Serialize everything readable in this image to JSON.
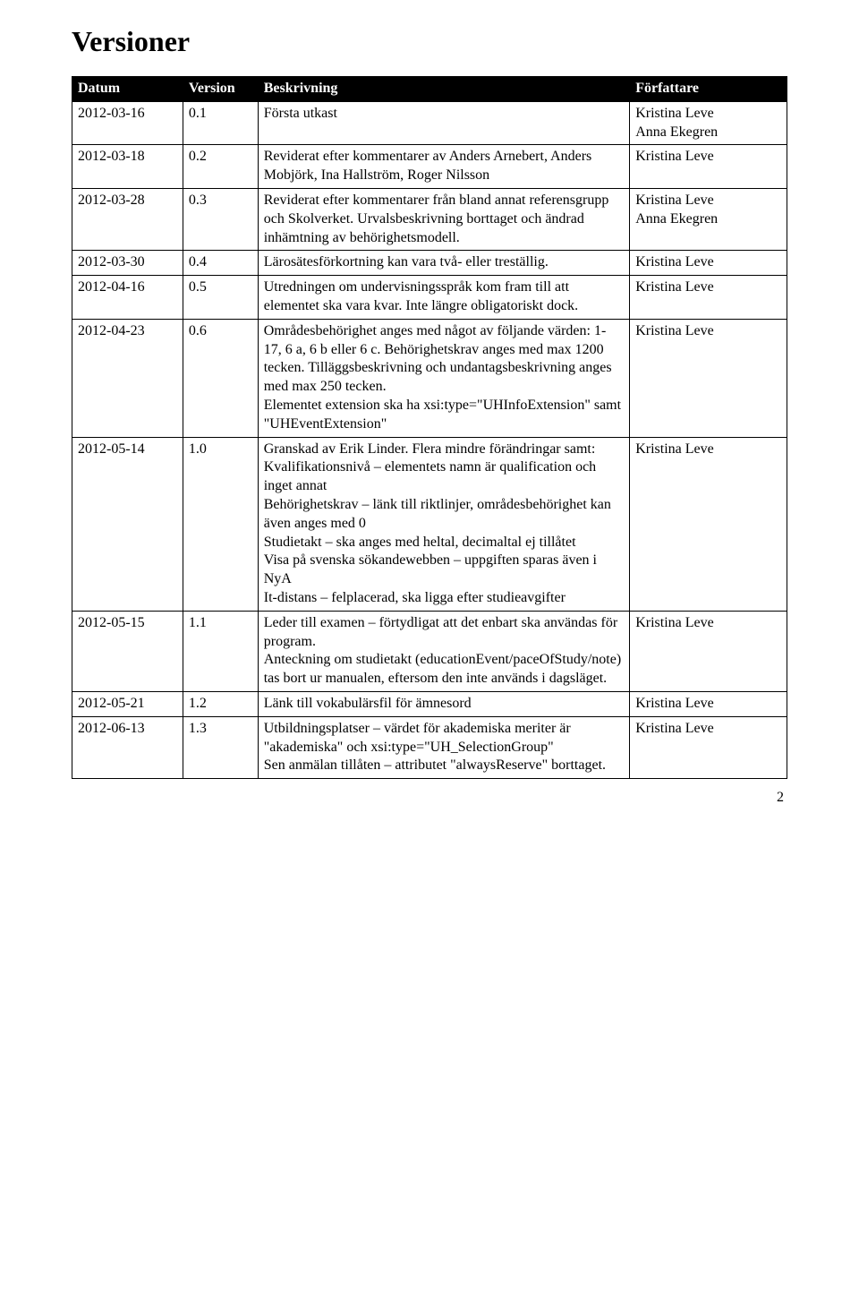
{
  "title": "Versioner",
  "header": {
    "datum": "Datum",
    "version": "Version",
    "beskrivning": "Beskrivning",
    "forfattare": "Författare"
  },
  "rows": [
    {
      "datum": "2012-03-16",
      "version": "0.1",
      "beskrivning": "Första utkast",
      "forfattare": "Kristina Leve\nAnna Ekegren"
    },
    {
      "datum": "2012-03-18",
      "version": "0.2",
      "beskrivning": "Reviderat efter kommentarer av Anders Arnebert, Anders Mobjörk, Ina Hallström, Roger Nilsson",
      "forfattare": "Kristina Leve"
    },
    {
      "datum": "2012-03-28",
      "version": "0.3",
      "beskrivning": "Reviderat efter kommentarer från bland annat referensgrupp och Skolverket. Urvalsbeskrivning borttaget och ändrad inhämtning av behörighetsmodell.",
      "forfattare": "Kristina Leve\nAnna Ekegren"
    },
    {
      "datum": "2012-03-30",
      "version": "0.4",
      "beskrivning": "Lärosätesförkortning kan vara två- eller treställig.",
      "forfattare": "Kristina Leve"
    },
    {
      "datum": "2012-04-16",
      "version": "0.5",
      "beskrivning": "Utredningen om undervisningsspråk kom fram till att elementet ska vara kvar. Inte längre obligatoriskt dock.",
      "forfattare": "Kristina Leve"
    },
    {
      "datum": "2012-04-23",
      "version": "0.6",
      "beskrivning": "Områdesbehörighet anges med något av följande värden: 1-17, 6 a, 6 b eller 6 c. Behörighetskrav anges med max 1200 tecken. Tilläggsbeskrivning och undantagsbeskrivning anges med max 250 tecken.\nElementet extension ska ha xsi:type=\"UHInfoExtension\" samt \"UHEventExtension\"",
      "forfattare": "Kristina Leve"
    },
    {
      "datum": "2012-05-14",
      "version": "1.0",
      "beskrivning": "Granskad av Erik Linder. Flera mindre förändringar samt:\nKvalifikationsnivå – elementets namn är qualification och inget annat\nBehörighetskrav – länk till riktlinjer, områdesbehörighet kan även anges med 0\nStudietakt – ska anges med heltal, decimaltal ej tillåtet\nVisa på svenska sökandewebben – uppgiften sparas även i NyA\nIt-distans – felplacerad, ska ligga efter studieavgifter",
      "forfattare": "Kristina Leve"
    },
    {
      "datum": "2012-05-15",
      "version": "1.1",
      "beskrivning": "Leder till examen – förtydligat att det enbart ska användas för program.\nAnteckning om studietakt (educationEvent/paceOfStudy/note) tas bort ur manualen, eftersom den inte används i dagsläget.",
      "forfattare": "Kristina Leve"
    },
    {
      "datum": "2012-05-21",
      "version": "1.2",
      "beskrivning": "Länk till vokabulärsfil för ämnesord",
      "forfattare": "Kristina Leve"
    },
    {
      "datum": "2012-06-13",
      "version": "1.3",
      "beskrivning": "Utbildningsplatser – värdet för akademiska meriter är \"akademiska\" och xsi:type=\"UH_SelectionGroup\"\nSen anmälan tillåten – attributet \"alwaysReserve\" borttaget.",
      "forfattare": "Kristina Leve"
    }
  ],
  "page_number": "2"
}
